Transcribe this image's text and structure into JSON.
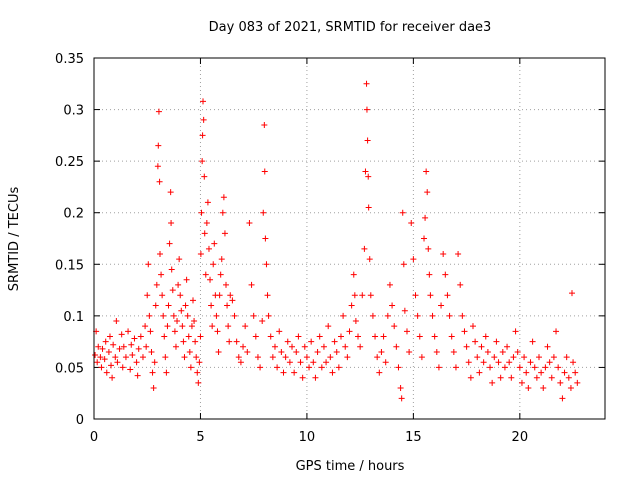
{
  "chart_data": {
    "type": "scatter",
    "title": "Day 083 of 2021, SRMTID for receiver dae3",
    "xlabel": "GPS time / hours",
    "ylabel": "SRMTID / TECUs",
    "xlim": [
      0,
      24
    ],
    "ylim": [
      0,
      0.35
    ],
    "xticks": [
      0,
      5,
      10,
      15,
      20
    ],
    "xtick_labels": [
      "0",
      "5",
      "10",
      "15",
      "20"
    ],
    "yticks": [
      0,
      0.05,
      0.1,
      0.15,
      0.2,
      0.25,
      0.3,
      0.35
    ],
    "ytick_labels": [
      "0",
      "0.05",
      "0.1",
      "0.15",
      "0.2",
      "0.25",
      "0.3",
      "0.35"
    ],
    "grid": true,
    "marker": "+",
    "color": "#ff0000",
    "series": [
      {
        "name": "SRMTID",
        "points": [
          [
            0.05,
            0.062
          ],
          [
            0.1,
            0.085
          ],
          [
            0.15,
            0.055
          ],
          [
            0.2,
            0.07
          ],
          [
            0.3,
            0.06
          ],
          [
            0.35,
            0.05
          ],
          [
            0.4,
            0.068
          ],
          [
            0.5,
            0.058
          ],
          [
            0.55,
            0.075
          ],
          [
            0.6,
            0.045
          ],
          [
            0.7,
            0.065
          ],
          [
            0.75,
            0.08
          ],
          [
            0.8,
            0.052
          ],
          [
            0.85,
            0.04
          ],
          [
            0.9,
            0.072
          ],
          [
            1.0,
            0.06
          ],
          [
            1.05,
            0.095
          ],
          [
            1.1,
            0.055
          ],
          [
            1.2,
            0.068
          ],
          [
            1.3,
            0.082
          ],
          [
            1.35,
            0.05
          ],
          [
            1.4,
            0.07
          ],
          [
            1.5,
            0.06
          ],
          [
            1.6,
            0.085
          ],
          [
            1.7,
            0.048
          ],
          [
            1.75,
            0.072
          ],
          [
            1.8,
            0.062
          ],
          [
            1.9,
            0.078
          ],
          [
            2.0,
            0.055
          ],
          [
            2.05,
            0.042
          ],
          [
            2.1,
            0.068
          ],
          [
            2.2,
            0.08
          ],
          [
            2.3,
            0.06
          ],
          [
            2.4,
            0.09
          ],
          [
            2.45,
            0.07
          ],
          [
            2.5,
            0.12
          ],
          [
            2.55,
            0.15
          ],
          [
            2.6,
            0.1
          ],
          [
            2.65,
            0.085
          ],
          [
            2.7,
            0.065
          ],
          [
            2.75,
            0.045
          ],
          [
            2.8,
            0.03
          ],
          [
            2.85,
            0.055
          ],
          [
            2.9,
            0.11
          ],
          [
            2.95,
            0.13
          ],
          [
            3.0,
            0.245
          ],
          [
            3.02,
            0.265
          ],
          [
            3.05,
            0.298
          ],
          [
            3.08,
            0.23
          ],
          [
            3.1,
            0.16
          ],
          [
            3.15,
            0.14
          ],
          [
            3.2,
            0.12
          ],
          [
            3.25,
            0.1
          ],
          [
            3.3,
            0.08
          ],
          [
            3.35,
            0.06
          ],
          [
            3.4,
            0.045
          ],
          [
            3.45,
            0.09
          ],
          [
            3.5,
            0.11
          ],
          [
            3.55,
            0.17
          ],
          [
            3.6,
            0.22
          ],
          [
            3.62,
            0.19
          ],
          [
            3.65,
            0.145
          ],
          [
            3.7,
            0.125
          ],
          [
            3.75,
            0.1
          ],
          [
            3.8,
            0.085
          ],
          [
            3.85,
            0.07
          ],
          [
            3.9,
            0.095
          ],
          [
            3.95,
            0.13
          ],
          [
            4.0,
            0.155
          ],
          [
            4.05,
            0.12
          ],
          [
            4.1,
            0.105
          ],
          [
            4.15,
            0.09
          ],
          [
            4.2,
            0.075
          ],
          [
            4.25,
            0.06
          ],
          [
            4.3,
            0.11
          ],
          [
            4.35,
            0.135
          ],
          [
            4.4,
            0.1
          ],
          [
            4.45,
            0.08
          ],
          [
            4.5,
            0.065
          ],
          [
            4.55,
            0.05
          ],
          [
            4.6,
            0.09
          ],
          [
            4.65,
            0.115
          ],
          [
            4.7,
            0.095
          ],
          [
            4.75,
            0.075
          ],
          [
            4.8,
            0.06
          ],
          [
            4.85,
            0.045
          ],
          [
            4.9,
            0.035
          ],
          [
            4.95,
            0.055
          ],
          [
            5.0,
            0.08
          ],
          [
            5.02,
            0.16
          ],
          [
            5.05,
            0.2
          ],
          [
            5.08,
            0.25
          ],
          [
            5.1,
            0.275
          ],
          [
            5.12,
            0.308
          ],
          [
            5.15,
            0.29
          ],
          [
            5.18,
            0.235
          ],
          [
            5.2,
            0.18
          ],
          [
            5.25,
            0.14
          ],
          [
            5.3,
            0.19
          ],
          [
            5.35,
            0.21
          ],
          [
            5.4,
            0.165
          ],
          [
            5.45,
            0.135
          ],
          [
            5.5,
            0.11
          ],
          [
            5.55,
            0.09
          ],
          [
            5.6,
            0.15
          ],
          [
            5.65,
            0.17
          ],
          [
            5.7,
            0.12
          ],
          [
            5.75,
            0.1
          ],
          [
            5.8,
            0.085
          ],
          [
            5.85,
            0.065
          ],
          [
            5.9,
            0.12
          ],
          [
            5.95,
            0.14
          ],
          [
            6.0,
            0.155
          ],
          [
            6.05,
            0.2
          ],
          [
            6.1,
            0.215
          ],
          [
            6.15,
            0.18
          ],
          [
            6.2,
            0.13
          ],
          [
            6.25,
            0.11
          ],
          [
            6.3,
            0.09
          ],
          [
            6.35,
            0.075
          ],
          [
            6.4,
            0.12
          ],
          [
            6.5,
            0.115
          ],
          [
            6.6,
            0.1
          ],
          [
            6.7,
            0.075
          ],
          [
            6.8,
            0.06
          ],
          [
            6.9,
            0.055
          ],
          [
            7.0,
            0.07
          ],
          [
            7.1,
            0.09
          ],
          [
            7.2,
            0.065
          ],
          [
            7.3,
            0.19
          ],
          [
            7.4,
            0.13
          ],
          [
            7.5,
            0.1
          ],
          [
            7.6,
            0.08
          ],
          [
            7.7,
            0.06
          ],
          [
            7.8,
            0.05
          ],
          [
            7.9,
            0.095
          ],
          [
            7.95,
            0.2
          ],
          [
            8.0,
            0.285
          ],
          [
            8.02,
            0.24
          ],
          [
            8.05,
            0.175
          ],
          [
            8.1,
            0.15
          ],
          [
            8.15,
            0.12
          ],
          [
            8.2,
            0.1
          ],
          [
            8.3,
            0.08
          ],
          [
            8.4,
            0.06
          ],
          [
            8.5,
            0.07
          ],
          [
            8.6,
            0.05
          ],
          [
            8.7,
            0.085
          ],
          [
            8.8,
            0.065
          ],
          [
            8.9,
            0.045
          ],
          [
            9.0,
            0.06
          ],
          [
            9.1,
            0.075
          ],
          [
            9.2,
            0.055
          ],
          [
            9.3,
            0.07
          ],
          [
            9.4,
            0.045
          ],
          [
            9.5,
            0.065
          ],
          [
            9.6,
            0.08
          ],
          [
            9.7,
            0.055
          ],
          [
            9.8,
            0.04
          ],
          [
            9.9,
            0.07
          ],
          [
            10.0,
            0.06
          ],
          [
            10.1,
            0.05
          ],
          [
            10.2,
            0.075
          ],
          [
            10.3,
            0.055
          ],
          [
            10.4,
            0.04
          ],
          [
            10.5,
            0.065
          ],
          [
            10.6,
            0.08
          ],
          [
            10.7,
            0.05
          ],
          [
            10.8,
            0.07
          ],
          [
            10.9,
            0.055
          ],
          [
            11.0,
            0.09
          ],
          [
            11.1,
            0.06
          ],
          [
            11.2,
            0.045
          ],
          [
            11.3,
            0.075
          ],
          [
            11.4,
            0.065
          ],
          [
            11.5,
            0.05
          ],
          [
            11.6,
            0.08
          ],
          [
            11.7,
            0.1
          ],
          [
            11.8,
            0.07
          ],
          [
            11.9,
            0.06
          ],
          [
            12.0,
            0.085
          ],
          [
            12.1,
            0.11
          ],
          [
            12.2,
            0.14
          ],
          [
            12.25,
            0.12
          ],
          [
            12.3,
            0.095
          ],
          [
            12.4,
            0.08
          ],
          [
            12.5,
            0.07
          ],
          [
            12.6,
            0.12
          ],
          [
            12.7,
            0.165
          ],
          [
            12.75,
            0.24
          ],
          [
            12.8,
            0.325
          ],
          [
            12.82,
            0.3
          ],
          [
            12.85,
            0.27
          ],
          [
            12.88,
            0.235
          ],
          [
            12.9,
            0.205
          ],
          [
            12.95,
            0.155
          ],
          [
            13.0,
            0.12
          ],
          [
            13.1,
            0.1
          ],
          [
            13.2,
            0.08
          ],
          [
            13.3,
            0.06
          ],
          [
            13.4,
            0.045
          ],
          [
            13.5,
            0.065
          ],
          [
            13.6,
            0.08
          ],
          [
            13.7,
            0.055
          ],
          [
            13.8,
            0.1
          ],
          [
            13.9,
            0.13
          ],
          [
            14.0,
            0.11
          ],
          [
            14.1,
            0.09
          ],
          [
            14.2,
            0.07
          ],
          [
            14.3,
            0.05
          ],
          [
            14.4,
            0.03
          ],
          [
            14.45,
            0.02
          ],
          [
            14.5,
            0.2
          ],
          [
            14.55,
            0.15
          ],
          [
            14.6,
            0.105
          ],
          [
            14.7,
            0.085
          ],
          [
            14.8,
            0.065
          ],
          [
            14.9,
            0.19
          ],
          [
            15.0,
            0.155
          ],
          [
            15.1,
            0.12
          ],
          [
            15.2,
            0.1
          ],
          [
            15.3,
            0.08
          ],
          [
            15.4,
            0.06
          ],
          [
            15.5,
            0.175
          ],
          [
            15.55,
            0.195
          ],
          [
            15.6,
            0.24
          ],
          [
            15.65,
            0.22
          ],
          [
            15.7,
            0.165
          ],
          [
            15.75,
            0.14
          ],
          [
            15.8,
            0.12
          ],
          [
            15.9,
            0.1
          ],
          [
            16.0,
            0.08
          ],
          [
            16.1,
            0.065
          ],
          [
            16.2,
            0.05
          ],
          [
            16.3,
            0.11
          ],
          [
            16.4,
            0.16
          ],
          [
            16.5,
            0.14
          ],
          [
            16.6,
            0.12
          ],
          [
            16.7,
            0.1
          ],
          [
            16.8,
            0.08
          ],
          [
            16.9,
            0.065
          ],
          [
            17.0,
            0.05
          ],
          [
            17.1,
            0.16
          ],
          [
            17.2,
            0.13
          ],
          [
            17.3,
            0.1
          ],
          [
            17.4,
            0.085
          ],
          [
            17.5,
            0.07
          ],
          [
            17.6,
            0.055
          ],
          [
            17.7,
            0.04
          ],
          [
            17.8,
            0.09
          ],
          [
            17.9,
            0.075
          ],
          [
            18.0,
            0.06
          ],
          [
            18.1,
            0.045
          ],
          [
            18.2,
            0.07
          ],
          [
            18.3,
            0.055
          ],
          [
            18.4,
            0.08
          ],
          [
            18.5,
            0.065
          ],
          [
            18.6,
            0.05
          ],
          [
            18.7,
            0.035
          ],
          [
            18.8,
            0.06
          ],
          [
            18.9,
            0.075
          ],
          [
            19.0,
            0.055
          ],
          [
            19.1,
            0.04
          ],
          [
            19.2,
            0.065
          ],
          [
            19.3,
            0.05
          ],
          [
            19.4,
            0.07
          ],
          [
            19.5,
            0.055
          ],
          [
            19.6,
            0.04
          ],
          [
            19.7,
            0.06
          ],
          [
            19.8,
            0.085
          ],
          [
            19.9,
            0.065
          ],
          [
            20.0,
            0.05
          ],
          [
            20.1,
            0.035
          ],
          [
            20.2,
            0.06
          ],
          [
            20.3,
            0.045
          ],
          [
            20.4,
            0.03
          ],
          [
            20.5,
            0.055
          ],
          [
            20.6,
            0.075
          ],
          [
            20.7,
            0.05
          ],
          [
            20.8,
            0.04
          ],
          [
            20.9,
            0.06
          ],
          [
            21.0,
            0.045
          ],
          [
            21.1,
            0.03
          ],
          [
            21.2,
            0.05
          ],
          [
            21.3,
            0.07
          ],
          [
            21.4,
            0.055
          ],
          [
            21.5,
            0.04
          ],
          [
            21.6,
            0.06
          ],
          [
            21.7,
            0.085
          ],
          [
            21.8,
            0.05
          ],
          [
            21.9,
            0.035
          ],
          [
            22.0,
            0.02
          ],
          [
            22.1,
            0.045
          ],
          [
            22.2,
            0.06
          ],
          [
            22.3,
            0.04
          ],
          [
            22.4,
            0.03
          ],
          [
            22.45,
            0.122
          ],
          [
            22.5,
            0.055
          ],
          [
            22.6,
            0.045
          ],
          [
            22.7,
            0.035
          ]
        ]
      }
    ]
  }
}
